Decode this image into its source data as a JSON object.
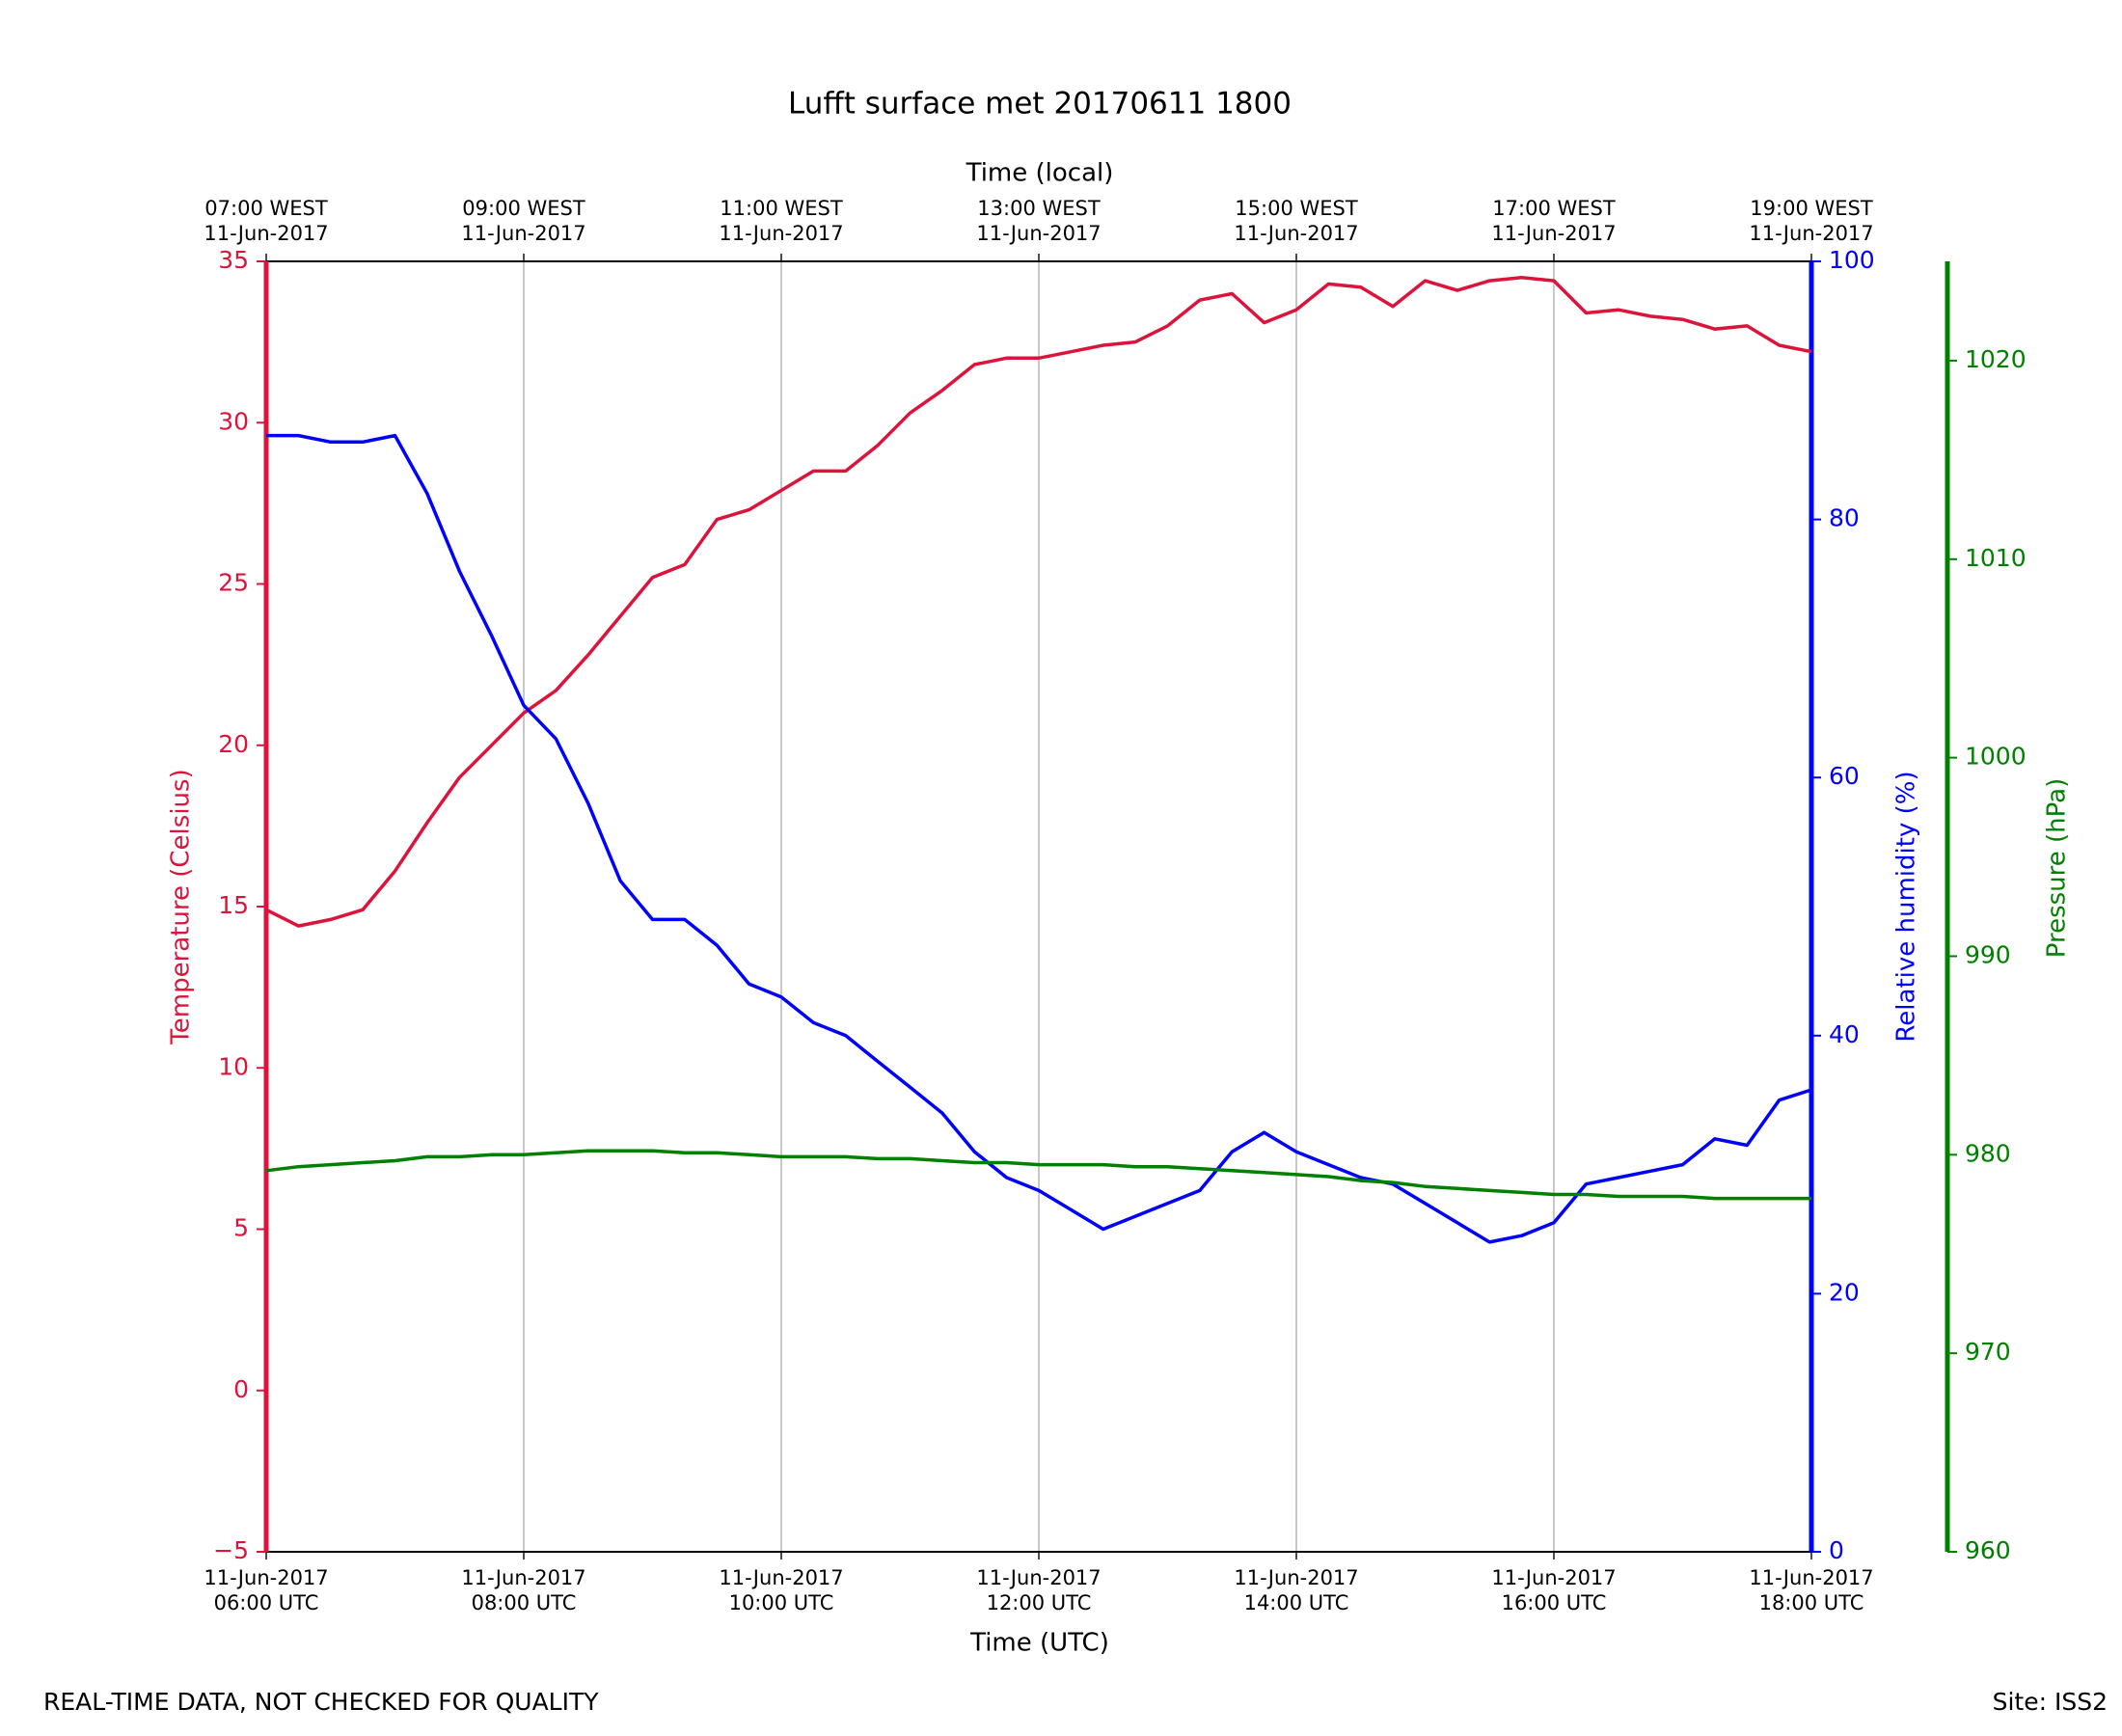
{
  "chart_data": {
    "type": "line",
    "title": "Lufft surface met 20170611 1800",
    "xlabel": "Time (UTC)",
    "x2label": "Time (local)",
    "ylabel": "Temperature (Celsius)",
    "y2label": "Relative humidity (%)",
    "y3label": "Pressure (hPa)",
    "annotations": [
      "REAL-TIME DATA, NOT CHECKED FOR QUALITY",
      "Site: ISS2"
    ],
    "grid": "x",
    "x": [
      6,
      6.25,
      6.5,
      6.75,
      7,
      7.25,
      7.5,
      7.75,
      8,
      8.25,
      8.5,
      8.75,
      9,
      9.25,
      9.5,
      9.75,
      10,
      10.25,
      10.5,
      10.75,
      11,
      11.25,
      11.5,
      11.75,
      12,
      12.25,
      12.5,
      12.75,
      13,
      13.25,
      13.5,
      13.75,
      14,
      14.25,
      14.5,
      14.75,
      15,
      15.25,
      15.5,
      15.75,
      16,
      16.25,
      16.5,
      16.75,
      17,
      17.25,
      17.5,
      17.75,
      18
    ],
    "xlim": [
      6,
      18
    ],
    "xticks": [
      {
        "value": 6,
        "label": "11-Jun-2017\n06:00 UTC"
      },
      {
        "value": 8,
        "label": "11-Jun-2017\n08:00 UTC"
      },
      {
        "value": 10,
        "label": "11-Jun-2017\n10:00 UTC"
      },
      {
        "value": 12,
        "label": "11-Jun-2017\n12:00 UTC"
      },
      {
        "value": 14,
        "label": "11-Jun-2017\n14:00 UTC"
      },
      {
        "value": 16,
        "label": "11-Jun-2017\n16:00 UTC"
      },
      {
        "value": 18,
        "label": "11-Jun-2017\n18:00 UTC"
      }
    ],
    "x2ticks": [
      {
        "value": 6,
        "label": "07:00 WEST\n11-Jun-2017"
      },
      {
        "value": 8,
        "label": "09:00 WEST\n11-Jun-2017"
      },
      {
        "value": 10,
        "label": "11:00 WEST\n11-Jun-2017"
      },
      {
        "value": 12,
        "label": "13:00 WEST\n11-Jun-2017"
      },
      {
        "value": 14,
        "label": "15:00 WEST\n11-Jun-2017"
      },
      {
        "value": 16,
        "label": "17:00 WEST\n11-Jun-2017"
      },
      {
        "value": 18,
        "label": "19:00 WEST\n11-Jun-2017"
      }
    ],
    "ylim": [
      -5,
      35
    ],
    "yticks": [
      {
        "value": -5,
        "label": "−5"
      },
      0,
      5,
      10,
      15,
      20,
      25,
      30,
      35
    ],
    "y2lim": [
      0,
      100
    ],
    "y2ticks": [
      0,
      20,
      40,
      60,
      80,
      100
    ],
    "y3lim": [
      960,
      1025
    ],
    "y3ticks": [
      960,
      970,
      980,
      990,
      1000,
      1010,
      1020
    ],
    "series": [
      {
        "name": "Temperature (Celsius)",
        "color": "#dc143c",
        "axis": "y",
        "values": [
          14.9,
          14.4,
          14.6,
          14.9,
          16.1,
          17.6,
          19.0,
          20.0,
          21.0,
          21.7,
          22.8,
          24.0,
          25.2,
          25.6,
          27.0,
          27.3,
          27.9,
          28.5,
          28.5,
          29.3,
          30.3,
          31.0,
          31.8,
          32.0,
          32.0,
          32.2,
          32.4,
          32.5,
          33.0,
          33.8,
          34.0,
          33.1,
          33.5,
          34.3,
          34.2,
          33.6,
          34.4,
          34.1,
          34.4,
          34.5,
          34.4,
          33.4,
          33.5,
          33.3,
          33.2,
          32.9,
          33.0,
          32.4,
          32.2
        ]
      },
      {
        "name": "Relative humidity (%)",
        "color": "#0000ff",
        "axis": "y2",
        "values": [
          86.5,
          86.5,
          86,
          86,
          86.5,
          82,
          76,
          71,
          65.6,
          63,
          58,
          52,
          49,
          49,
          47,
          44,
          43,
          41,
          40,
          38,
          36,
          34,
          31,
          29,
          28,
          26.5,
          25,
          26,
          27,
          28,
          31,
          32.5,
          31,
          30,
          29,
          28.5,
          27,
          25.5,
          24,
          24.5,
          25.5,
          28.5,
          29,
          29.5,
          30,
          32,
          31.5,
          35,
          35.8
        ]
      },
      {
        "name": "Pressure (hPa)",
        "color": "#008000",
        "axis": "y3",
        "values": [
          979.2,
          979.4,
          979.5,
          979.6,
          979.7,
          979.9,
          979.9,
          980.0,
          980.0,
          980.1,
          980.2,
          980.2,
          980.2,
          980.1,
          980.1,
          980.0,
          979.9,
          979.9,
          979.9,
          979.8,
          979.8,
          979.7,
          979.6,
          979.6,
          979.5,
          979.5,
          979.5,
          979.4,
          979.4,
          979.3,
          979.2,
          979.1,
          979.0,
          978.9,
          978.7,
          978.6,
          978.4,
          978.3,
          978.2,
          978.1,
          978.0,
          978.0,
          977.9,
          977.9,
          977.9,
          977.8,
          977.8,
          977.8,
          977.8
        ]
      }
    ]
  }
}
